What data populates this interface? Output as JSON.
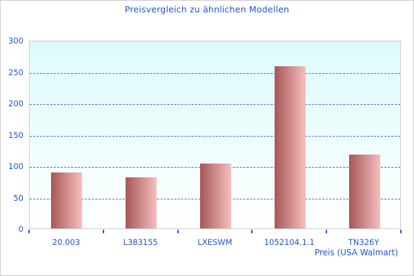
{
  "chart_data": {
    "type": "bar",
    "title": "Preisvergleich zu ähnlichen Modellen",
    "categories": [
      "20.003",
      "L383155",
      "LXESWM",
      "1052104.1.1",
      "TN326Y"
    ],
    "values": [
      89,
      81,
      103,
      258,
      118
    ],
    "xlabel": "Preis (USA Walmart)",
    "ylabel": "",
    "ylim": [
      0,
      300
    ],
    "yticks": [
      0,
      50,
      100,
      150,
      200,
      250,
      300
    ],
    "grid": "horizontal-dashed",
    "legend_position": "none",
    "colors": {
      "title_text": "#2254C8",
      "axis_text": "#2254C8",
      "gridline": "#4169C8",
      "tick": "#2254C8",
      "bar_gradient_left": "#A85656",
      "bar_gradient_right": "#F6BFBF",
      "plot_bg_top": "#DCFBFB",
      "plot_bg_bottom": "#FFFFFF",
      "plot_border": "#CCCCCC",
      "frame_border": "#CCCCCC"
    }
  }
}
